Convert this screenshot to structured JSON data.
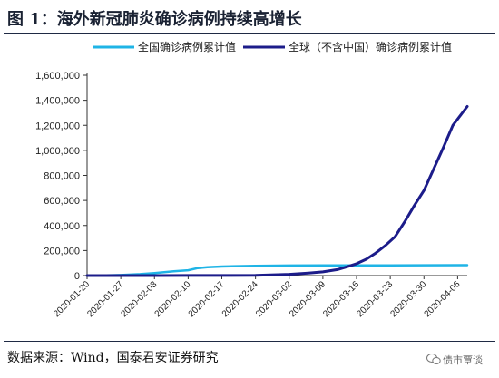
{
  "figure": {
    "title": "图 1：海外新冠肺炎确诊病例持续高增长",
    "source": "数据来源：Wind，国泰君安证券研究",
    "watermark": "债市覃谈"
  },
  "chart_data": {
    "type": "line",
    "title": "",
    "xlabel": "",
    "ylabel": "",
    "ylim": [
      0,
      1600000
    ],
    "yticks": [
      0,
      200000,
      400000,
      600000,
      800000,
      1000000,
      1200000,
      1400000,
      1600000
    ],
    "ytick_labels": [
      "0",
      "200,000",
      "400,000",
      "600,000",
      "800,000",
      "1,000,000",
      "1,200,000",
      "1,400,000",
      "1,600,000"
    ],
    "xlim": [
      "2020-01-20",
      "2020-04-08"
    ],
    "xtick_labels": [
      "2020-01-20",
      "2020-01-27",
      "2020-02-03",
      "2020-02-10",
      "2020-02-17",
      "2020-02-24",
      "2020-03-02",
      "2020-03-09",
      "2020-03-16",
      "2020-03-23",
      "2020-03-30",
      "2020-04-06"
    ],
    "legend_position": "top",
    "grid": false,
    "series": [
      {
        "name": "全国确诊病例累计值",
        "color": "#1fb4e6",
        "points": [
          [
            "2020-01-20",
            291
          ],
          [
            "2020-01-24",
            1287
          ],
          [
            "2020-01-27",
            4515
          ],
          [
            "2020-01-31",
            11791
          ],
          [
            "2020-02-03",
            20438
          ],
          [
            "2020-02-07",
            34546
          ],
          [
            "2020-02-10",
            42638
          ],
          [
            "2020-02-12",
            59804
          ],
          [
            "2020-02-14",
            66492
          ],
          [
            "2020-02-17",
            72436
          ],
          [
            "2020-02-20",
            75465
          ],
          [
            "2020-02-24",
            77262
          ],
          [
            "2020-03-02",
            80151
          ],
          [
            "2020-03-09",
            80754
          ],
          [
            "2020-03-16",
            81077
          ],
          [
            "2020-03-23",
            81601
          ],
          [
            "2020-03-30",
            82447
          ],
          [
            "2020-04-08",
            83249
          ]
        ]
      },
      {
        "name": "全球（不含中国）确诊病例累计值",
        "color": "#1c1c8a",
        "points": [
          [
            "2020-01-20",
            0
          ],
          [
            "2020-01-27",
            60
          ],
          [
            "2020-02-03",
            180
          ],
          [
            "2020-02-10",
            400
          ],
          [
            "2020-02-17",
            900
          ],
          [
            "2020-02-24",
            2500
          ],
          [
            "2020-03-02",
            10000
          ],
          [
            "2020-03-06",
            20000
          ],
          [
            "2020-03-09",
            30000
          ],
          [
            "2020-03-12",
            48000
          ],
          [
            "2020-03-14",
            70000
          ],
          [
            "2020-03-16",
            95000
          ],
          [
            "2020-03-18",
            130000
          ],
          [
            "2020-03-20",
            180000
          ],
          [
            "2020-03-22",
            240000
          ],
          [
            "2020-03-24",
            310000
          ],
          [
            "2020-03-26",
            430000
          ],
          [
            "2020-03-28",
            560000
          ],
          [
            "2020-03-30",
            680000
          ],
          [
            "2020-04-01",
            850000
          ],
          [
            "2020-04-03",
            1020000
          ],
          [
            "2020-04-05",
            1200000
          ],
          [
            "2020-04-07",
            1300000
          ],
          [
            "2020-04-08",
            1350000
          ]
        ]
      }
    ]
  }
}
